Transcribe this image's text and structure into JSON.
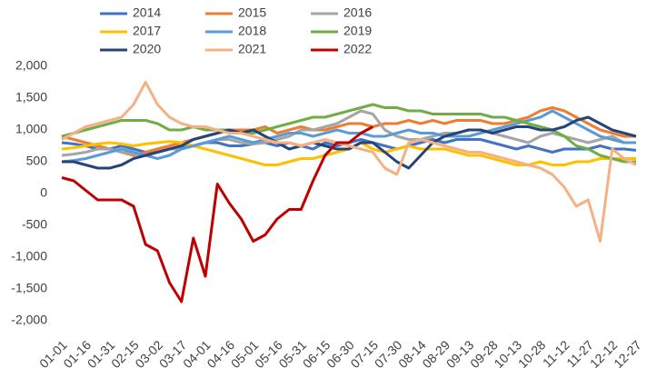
{
  "chart_data": {
    "type": "line",
    "categories": [
      "01-01",
      null,
      "01-16",
      null,
      "01-31",
      null,
      "02-15",
      null,
      "03-02",
      null,
      "03-17",
      null,
      "04-01",
      null,
      "04-16",
      null,
      "05-01",
      null,
      "05-16",
      null,
      "05-31",
      null,
      "06-15",
      null,
      "06-30",
      null,
      "07-15",
      null,
      "07-30",
      null,
      "08-14",
      null,
      "08-29",
      null,
      "09-13",
      null,
      "09-28",
      null,
      "10-13",
      null,
      "10-28",
      null,
      "11-12",
      null,
      "11-27",
      null,
      "12-12",
      null,
      "12-27"
    ],
    "ylim": [
      -2000,
      2000
    ],
    "yticks": [
      {
        "value": -2000,
        "label": "-2,000"
      },
      {
        "value": -1500,
        "label": "-1,500"
      },
      {
        "value": -1000,
        "label": "-1,000"
      },
      -500,
      0,
      500,
      {
        "value": 1000,
        "label": "1,000"
      },
      {
        "value": 1500,
        "label": "1,500"
      },
      {
        "value": 2000,
        "label": "2,000"
      }
    ],
    "grid": false,
    "series": [
      {
        "name": "2014",
        "color": "#4472c4",
        "values": [
          800,
          780,
          750,
          700,
          700,
          750,
          700,
          650,
          650,
          700,
          720,
          750,
          800,
          800,
          750,
          750,
          780,
          800,
          750,
          800,
          750,
          700,
          800,
          750,
          800,
          850,
          800,
          750,
          700,
          750,
          800,
          850,
          800,
          850,
          850,
          850,
          800,
          750,
          700,
          750,
          700,
          650,
          700,
          700,
          700,
          750,
          700,
          700,
          680
        ]
      },
      {
        "name": "2015",
        "color": "#ed7d31",
        "values": [
          900,
          850,
          800,
          750,
          700,
          650,
          600,
          650,
          700,
          750,
          800,
          850,
          900,
          950,
          1000,
          1000,
          1000,
          1050,
          950,
          1000,
          1050,
          1000,
          1000,
          1050,
          1100,
          1100,
          1050,
          1100,
          1100,
          1150,
          1100,
          1150,
          1100,
          1150,
          1150,
          1150,
          1100,
          1100,
          1150,
          1200,
          1300,
          1350,
          1300,
          1200,
          1100,
          1000,
          950,
          900,
          900
        ]
      },
      {
        "name": "2016",
        "color": "#a5a5a5",
        "values": [
          600,
          620,
          650,
          700,
          700,
          650,
          620,
          600,
          650,
          700,
          700,
          750,
          800,
          850,
          850,
          800,
          780,
          800,
          850,
          900,
          1000,
          1000,
          1050,
          1100,
          1200,
          1300,
          1250,
          1000,
          900,
          850,
          850,
          900,
          950,
          950,
          1000,
          1000,
          950,
          900,
          850,
          800,
          900,
          950,
          900,
          850,
          800,
          850,
          900,
          800,
          800
        ]
      },
      {
        "name": "2017",
        "color": "#ffc000",
        "values": [
          700,
          720,
          750,
          780,
          800,
          780,
          750,
          780,
          800,
          820,
          800,
          750,
          700,
          650,
          600,
          550,
          500,
          450,
          450,
          500,
          550,
          550,
          600,
          650,
          700,
          800,
          700,
          650,
          700,
          750,
          700,
          700,
          700,
          650,
          600,
          600,
          550,
          500,
          450,
          450,
          500,
          450,
          450,
          500,
          500,
          550,
          550,
          550,
          550
        ]
      },
      {
        "name": "2018",
        "color": "#5b9bd5",
        "values": [
          500,
          520,
          550,
          600,
          650,
          700,
          650,
          600,
          550,
          600,
          700,
          750,
          800,
          850,
          900,
          850,
          800,
          850,
          900,
          950,
          950,
          900,
          950,
          1000,
          950,
          950,
          900,
          900,
          950,
          1000,
          950,
          950,
          900,
          900,
          900,
          950,
          1000,
          1050,
          1100,
          1150,
          1200,
          1300,
          1200,
          1100,
          1000,
          900,
          850,
          800,
          800
        ]
      },
      {
        "name": "2019",
        "color": "#70ad47",
        "values": [
          900,
          950,
          1000,
          1050,
          1100,
          1150,
          1150,
          1150,
          1100,
          1000,
          1000,
          1050,
          1000,
          1000,
          1000,
          950,
          950,
          1000,
          1050,
          1100,
          1150,
          1200,
          1200,
          1250,
          1300,
          1350,
          1400,
          1350,
          1350,
          1300,
          1300,
          1250,
          1250,
          1250,
          1250,
          1250,
          1200,
          1200,
          1150,
          1100,
          1050,
          1000,
          900,
          750,
          700,
          600,
          550,
          500,
          500
        ]
      },
      {
        "name": "2020",
        "color": "#264478",
        "values": [
          500,
          500,
          450,
          400,
          400,
          450,
          550,
          600,
          650,
          700,
          750,
          850,
          900,
          950,
          1000,
          950,
          1000,
          900,
          800,
          700,
          750,
          800,
          750,
          700,
          700,
          800,
          800,
          650,
          500,
          400,
          600,
          800,
          900,
          950,
          1000,
          1000,
          950,
          1000,
          1050,
          1050,
          1000,
          1000,
          1050,
          1150,
          1200,
          1100,
          1000,
          950,
          900
        ]
      },
      {
        "name": "2021",
        "color": "#f4b183",
        "values": [
          850,
          950,
          1050,
          1100,
          1150,
          1200,
          1400,
          1750,
          1400,
          1200,
          1100,
          1050,
          1050,
          1000,
          950,
          950,
          900,
          850,
          800,
          800,
          750,
          800,
          850,
          800,
          750,
          700,
          650,
          400,
          300,
          800,
          850,
          800,
          750,
          700,
          650,
          650,
          600,
          550,
          500,
          450,
          400,
          300,
          100,
          -200,
          -100,
          -750,
          700,
          550,
          450
        ]
      },
      {
        "name": "2022",
        "color": "#c00000",
        "values": [
          250,
          200,
          50,
          -100,
          -100,
          -100,
          -200,
          -800,
          -900,
          -1400,
          -1700,
          -700,
          -1300,
          150,
          -150,
          -400,
          -750,
          -650,
          -400,
          -250,
          -250,
          200,
          600,
          800,
          800,
          950,
          1050,
          null,
          null,
          null,
          null,
          null,
          null,
          null,
          null,
          null,
          null,
          null,
          null,
          null,
          null,
          null,
          null,
          null,
          null,
          null,
          null,
          null,
          null
        ]
      }
    ]
  }
}
